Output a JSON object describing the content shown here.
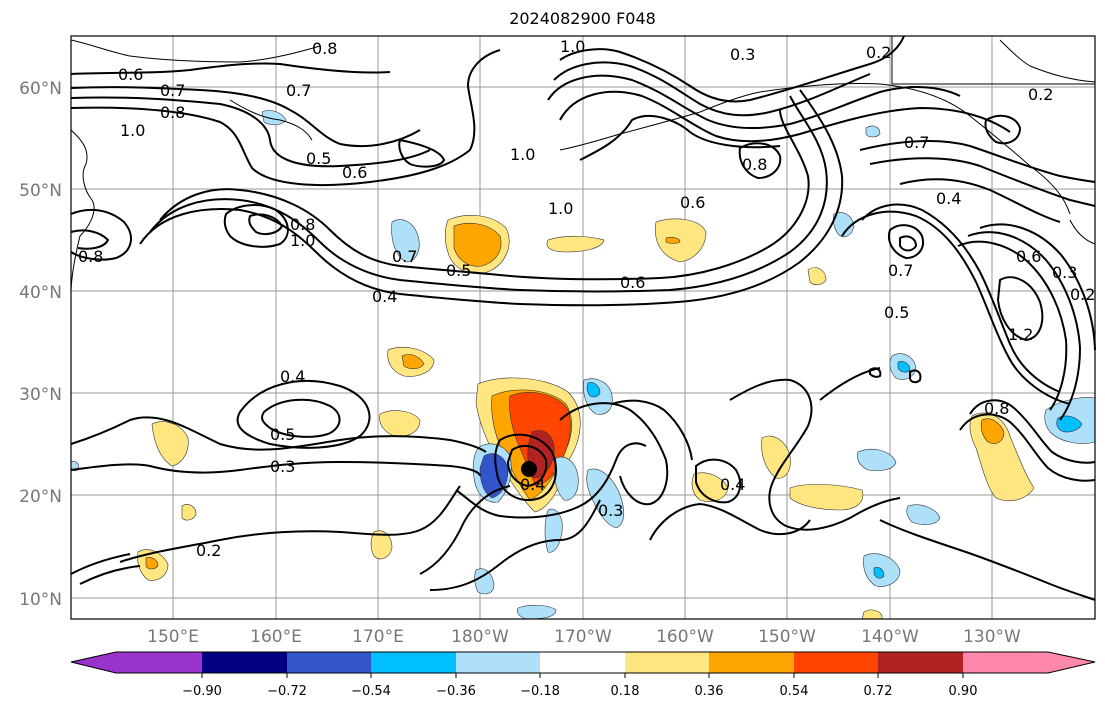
{
  "title": "2024082900 F048",
  "map": {
    "lat_ticks": [
      "60°N",
      "50°N",
      "40°N",
      "30°N",
      "20°N",
      "10°N"
    ],
    "lon_ticks": [
      "150°E",
      "160°E",
      "170°E",
      "180°W",
      "170°W",
      "160°W",
      "150°W",
      "140°W",
      "130°W"
    ],
    "contour_labels": [
      "0.6",
      "0.7",
      "0.8",
      "1.0",
      "0.7",
      "0.5",
      "0.6",
      "0.8",
      "1.0",
      "1.0",
      "0.3",
      "0.2",
      "0.2",
      "0.7",
      "0.8",
      "0.4",
      "0.7",
      "0.5",
      "0.6",
      "0.4",
      "0.6",
      "0.7",
      "0.5",
      "0.6",
      "0.3",
      "0.2",
      "1.2",
      "0.8",
      "0.4",
      "0.5",
      "0.3",
      "0.4",
      "0.3",
      "0.4",
      "0.2",
      "0.8",
      "0.8",
      "1.0",
      "1.0"
    ],
    "grid_color": "#999999",
    "contour_color": "#000000"
  },
  "colorbar": {
    "tick_labels": [
      "−0.90",
      "−0.72",
      "−0.54",
      "−0.36",
      "−0.18",
      "0.18",
      "0.36",
      "0.54",
      "0.72",
      "0.90"
    ],
    "colors": [
      "#9933cc",
      "#000080",
      "#3355cc",
      "#00bfff",
      "#aee0fa",
      "#ffffff",
      "#ffe680",
      "#ffa500",
      "#ff4500",
      "#b22222",
      "#ff88aa"
    ]
  }
}
